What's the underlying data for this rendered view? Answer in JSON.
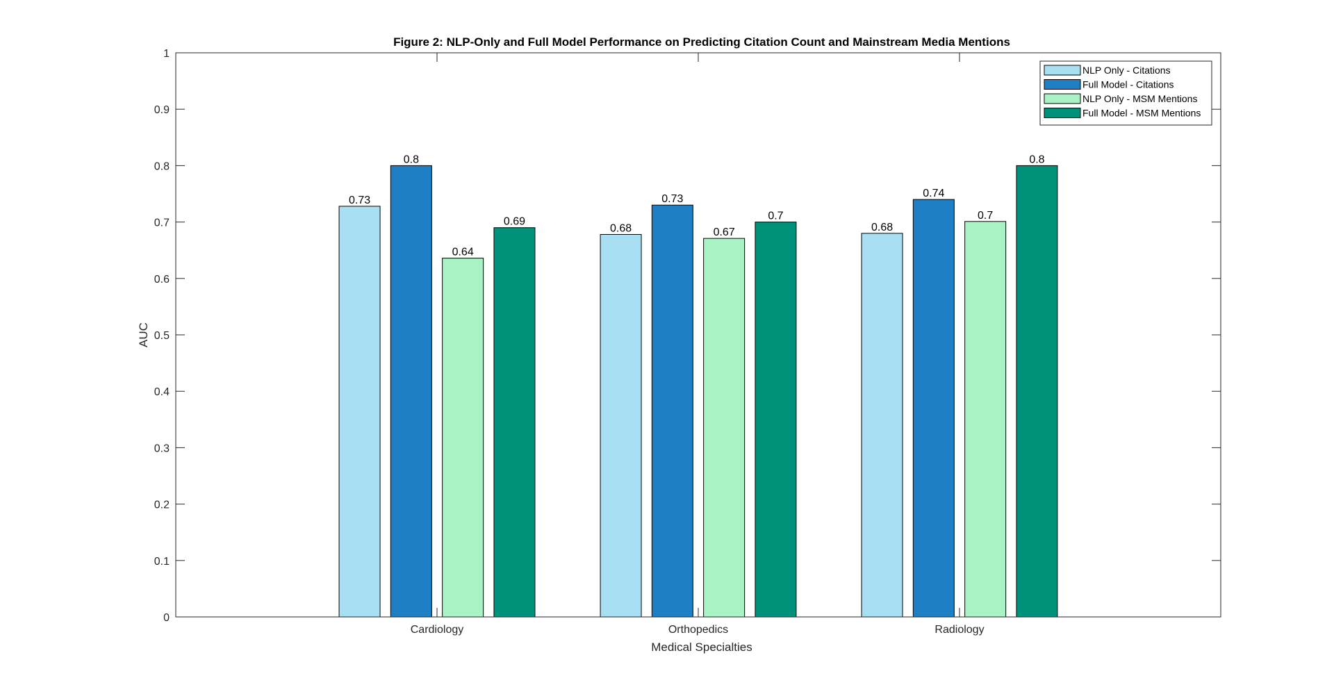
{
  "chart_data": {
    "type": "bar",
    "title": "Figure 2: NLP-Only and Full Model Performance on Predicting Citation Count and Mainstream Media Mentions",
    "xlabel": "Medical Specialties",
    "ylabel": "AUC",
    "categories": [
      "Cardiology",
      "Orthopedics",
      "Radiology"
    ],
    "ylim": [
      0,
      1
    ],
    "yticks": [
      0,
      0.1,
      0.2,
      0.3,
      0.4,
      0.5,
      0.6,
      0.7,
      0.8,
      0.9,
      1
    ],
    "ytick_labels": [
      "0",
      "0.1",
      "0.2",
      "0.3",
      "0.4",
      "0.5",
      "0.6",
      "0.7",
      "0.8",
      "0.9",
      "1"
    ],
    "grid": false,
    "legend_position": "top-right",
    "series": [
      {
        "name": "NLP Only - Citations",
        "color": "#a8dff2",
        "values": [
          0.728,
          0.678,
          0.68
        ],
        "labels": [
          "0.73",
          "0.68",
          "0.68"
        ]
      },
      {
        "name": "Full Model - Citations",
        "color": "#1e7fc4",
        "values": [
          0.8,
          0.73,
          0.74
        ],
        "labels": [
          "0.8",
          "0.73",
          "0.74"
        ]
      },
      {
        "name": "NLP Only - MSM Mentions",
        "color": "#a8f2c4",
        "values": [
          0.636,
          0.671,
          0.701
        ],
        "labels": [
          "0.64",
          "0.67",
          "0.7"
        ]
      },
      {
        "name": "Full Model - MSM Mentions",
        "color": "#00917a",
        "values": [
          0.69,
          0.7,
          0.8
        ],
        "labels": [
          "0.69",
          "0.7",
          "0.8"
        ]
      }
    ]
  }
}
